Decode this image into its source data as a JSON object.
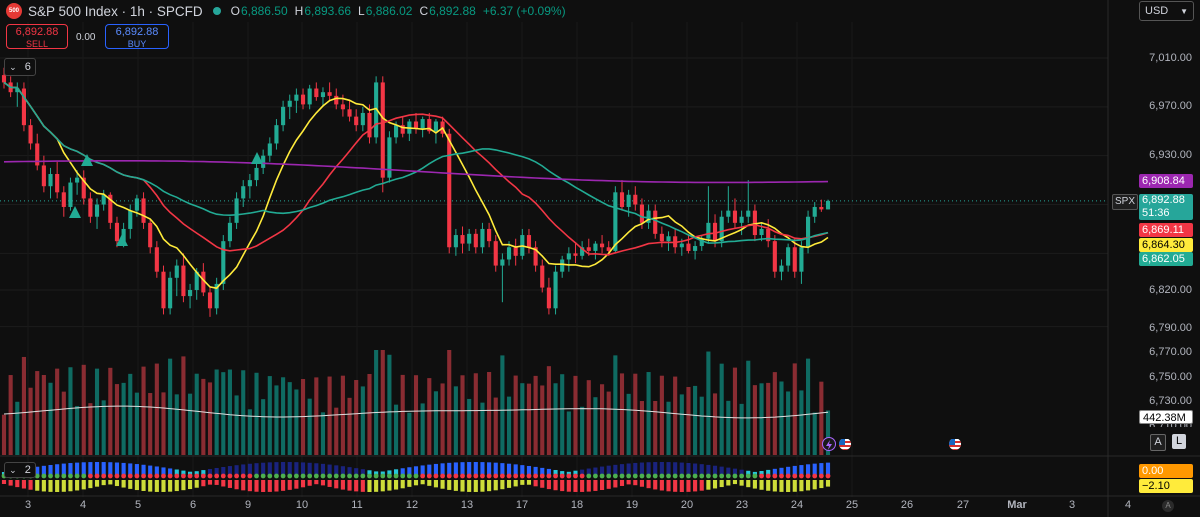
{
  "header": {
    "logo_text": "500",
    "title": "S&P 500 Index · 1h · SPCFD",
    "ohlc": [
      {
        "label": "O",
        "value": "6,886.50"
      },
      {
        "label": "H",
        "value": "6,893.66"
      },
      {
        "label": "L",
        "value": "6,886.02"
      },
      {
        "label": "C",
        "value": "6,892.88"
      }
    ],
    "change": "+6.37 (+0.09%)",
    "currency": "USD"
  },
  "trade": {
    "sell_price": "6,892.88",
    "sell_label": "SELL",
    "spread": "0.00",
    "buy_price": "6,892.88",
    "buy_label": "BUY"
  },
  "indicators": {
    "main_count": "6",
    "sub_count": "2"
  },
  "price_axis": {
    "labels": [
      "7,010.00",
      "6,970.00",
      "6,930.00",
      "6,820.00",
      "6,790.00",
      "6,770.00",
      "6,750.00",
      "6,730.00",
      "6,710.00"
    ]
  },
  "price_tags": {
    "ma_purple": {
      "value": "6,908.84",
      "color": "#9c27b0"
    },
    "spx": {
      "value": "6,892.88",
      "countdown": "51:36",
      "symbol": "SPX",
      "color": "#26a69a"
    },
    "ma_red": {
      "value": "6,869.11",
      "color": "#f23645"
    },
    "ma_yellow": {
      "value": "6,864.30",
      "color": "#ffeb3b"
    },
    "ma_green": {
      "value": "6,862.05",
      "color": "#22ab94"
    },
    "volume_ma": "442.38M",
    "osc_a": {
      "value": "0.00",
      "color": "#ff9800"
    },
    "osc_b": {
      "value": "−2.10",
      "color": "#ffeb3b"
    }
  },
  "scale_buttons": {
    "a": "A",
    "l": "L",
    "auto": "A"
  },
  "time_axis": [
    "3",
    "4",
    "5",
    "6",
    "9",
    "10",
    "11",
    "12",
    "13",
    "17",
    "18",
    "19",
    "20",
    "23",
    "24",
    "25",
    "26",
    "27",
    "Mar",
    "3",
    "4"
  ],
  "colors": {
    "up": "#22ab94",
    "down": "#f23645",
    "up_vol": "#0f6b62",
    "down_vol": "#8a2c32",
    "background": "#0f0f0f"
  },
  "chart_data": {
    "type": "candlestick",
    "ylim": [
      6770,
      7030
    ],
    "candles": [
      [
        6996,
        7002,
        6985,
        6990
      ],
      [
        6990,
        6995,
        6978,
        6982
      ],
      [
        6982,
        6990,
        6970,
        6985
      ],
      [
        6985,
        6990,
        6950,
        6955
      ],
      [
        6955,
        6960,
        6935,
        6940
      ],
      [
        6940,
        6948,
        6918,
        6922
      ],
      [
        6922,
        6930,
        6900,
        6905
      ],
      [
        6905,
        6920,
        6895,
        6915
      ],
      [
        6915,
        6925,
        6895,
        6900
      ],
      [
        6900,
        6905,
        6880,
        6888
      ],
      [
        6888,
        6912,
        6885,
        6908
      ],
      [
        6908,
        6918,
        6898,
        6912
      ],
      [
        6912,
        6918,
        6890,
        6895
      ],
      [
        6895,
        6900,
        6875,
        6880
      ],
      [
        6880,
        6895,
        6870,
        6890
      ],
      [
        6890,
        6902,
        6885,
        6898
      ],
      [
        6898,
        6900,
        6870,
        6875
      ],
      [
        6875,
        6880,
        6855,
        6860
      ],
      [
        6860,
        6875,
        6855,
        6870
      ],
      [
        6870,
        6890,
        6862,
        6885
      ],
      [
        6885,
        6898,
        6880,
        6895
      ],
      [
        6895,
        6900,
        6870,
        6875
      ],
      [
        6875,
        6878,
        6850,
        6855
      ],
      [
        6855,
        6860,
        6830,
        6835
      ],
      [
        6835,
        6840,
        6800,
        6805
      ],
      [
        6805,
        6835,
        6800,
        6830
      ],
      [
        6830,
        6845,
        6815,
        6840
      ],
      [
        6840,
        6850,
        6810,
        6815
      ],
      [
        6815,
        6825,
        6805,
        6820
      ],
      [
        6820,
        6838,
        6812,
        6835
      ],
      [
        6835,
        6842,
        6815,
        6818
      ],
      [
        6818,
        6822,
        6798,
        6805
      ],
      [
        6805,
        6830,
        6800,
        6825
      ],
      [
        6825,
        6865,
        6820,
        6860
      ],
      [
        6860,
        6880,
        6855,
        6875
      ],
      [
        6875,
        6900,
        6870,
        6895
      ],
      [
        6895,
        6910,
        6888,
        6905
      ],
      [
        6905,
        6915,
        6895,
        6910
      ],
      [
        6910,
        6925,
        6905,
        6920
      ],
      [
        6920,
        6935,
        6915,
        6930
      ],
      [
        6930,
        6945,
        6925,
        6940
      ],
      [
        6940,
        6960,
        6935,
        6955
      ],
      [
        6955,
        6975,
        6950,
        6970
      ],
      [
        6970,
        6980,
        6960,
        6975
      ],
      [
        6975,
        6985,
        6965,
        6980
      ],
      [
        6980,
        6985,
        6968,
        6972
      ],
      [
        6972,
        6988,
        6968,
        6985
      ],
      [
        6985,
        6990,
        6975,
        6978
      ],
      [
        6978,
        6986,
        6970,
        6982
      ],
      [
        6982,
        6990,
        6975,
        6979
      ],
      [
        6979,
        6985,
        6968,
        6972
      ],
      [
        6972,
        6980,
        6962,
        6968
      ],
      [
        6968,
        6975,
        6958,
        6962
      ],
      [
        6962,
        6968,
        6950,
        6955
      ],
      [
        6955,
        6970,
        6950,
        6965
      ],
      [
        6965,
        6972,
        6940,
        6945
      ],
      [
        6945,
        6995,
        6940,
        6990
      ],
      [
        6990,
        6995,
        6900,
        6912
      ],
      [
        6912,
        6950,
        6908,
        6945
      ],
      [
        6945,
        6958,
        6940,
        6955
      ],
      [
        6955,
        6962,
        6945,
        6948
      ],
      [
        6948,
        6960,
        6942,
        6958
      ],
      [
        6958,
        6965,
        6948,
        6952
      ],
      [
        6952,
        6962,
        6945,
        6960
      ],
      [
        6960,
        6965,
        6948,
        6950
      ],
      [
        6950,
        6960,
        6940,
        6958
      ],
      [
        6958,
        6962,
        6945,
        6948
      ],
      [
        6948,
        6952,
        6850,
        6855
      ],
      [
        6855,
        6870,
        6848,
        6865
      ],
      [
        6865,
        6872,
        6850,
        6858
      ],
      [
        6858,
        6870,
        6852,
        6866
      ],
      [
        6866,
        6870,
        6850,
        6855
      ],
      [
        6855,
        6875,
        6850,
        6870
      ],
      [
        6870,
        6875,
        6855,
        6860
      ],
      [
        6860,
        6865,
        6835,
        6840
      ],
      [
        6840,
        6850,
        6810,
        6845
      ],
      [
        6845,
        6860,
        6840,
        6855
      ],
      [
        6855,
        6862,
        6840,
        6848
      ],
      [
        6848,
        6870,
        6845,
        6865
      ],
      [
        6865,
        6870,
        6850,
        6855
      ],
      [
        6855,
        6860,
        6835,
        6840
      ],
      [
        6840,
        6845,
        6818,
        6822
      ],
      [
        6822,
        6830,
        6800,
        6805
      ],
      [
        6805,
        6840,
        6800,
        6835
      ],
      [
        6835,
        6848,
        6830,
        6845
      ],
      [
        6845,
        6855,
        6835,
        6850
      ],
      [
        6850,
        6858,
        6842,
        6848
      ],
      [
        6848,
        6860,
        6845,
        6855
      ],
      [
        6855,
        6862,
        6848,
        6852
      ],
      [
        6852,
        6860,
        6845,
        6858
      ],
      [
        6858,
        6865,
        6850,
        6855
      ],
      [
        6855,
        6860,
        6848,
        6852
      ],
      [
        6852,
        6905,
        6850,
        6900
      ],
      [
        6900,
        6910,
        6885,
        6888
      ],
      [
        6888,
        6902,
        6880,
        6898
      ],
      [
        6898,
        6905,
        6885,
        6890
      ],
      [
        6890,
        6895,
        6870,
        6875
      ],
      [
        6875,
        6890,
        6870,
        6885
      ],
      [
        6885,
        6890,
        6862,
        6866
      ],
      [
        6866,
        6872,
        6855,
        6860
      ],
      [
        6860,
        6868,
        6852,
        6864
      ],
      [
        6864,
        6870,
        6850,
        6855
      ],
      [
        6855,
        6862,
        6848,
        6858
      ],
      [
        6858,
        6865,
        6850,
        6852
      ],
      [
        6852,
        6860,
        6845,
        6856
      ],
      [
        6856,
        6865,
        6852,
        6862
      ],
      [
        6862,
        6905,
        6858,
        6875
      ],
      [
        6875,
        6882,
        6855,
        6860
      ],
      [
        6860,
        6885,
        6855,
        6880
      ],
      [
        6880,
        6905,
        6875,
        6885
      ],
      [
        6885,
        6895,
        6870,
        6875
      ],
      [
        6875,
        6885,
        6865,
        6880
      ],
      [
        6880,
        6910,
        6875,
        6885
      ],
      [
        6885,
        6890,
        6860,
        6865
      ],
      [
        6865,
        6875,
        6860,
        6870
      ],
      [
        6870,
        6878,
        6855,
        6860
      ],
      [
        6860,
        6865,
        6830,
        6835
      ],
      [
        6835,
        6845,
        6828,
        6840
      ],
      [
        6840,
        6858,
        6835,
        6855
      ],
      [
        6855,
        6862,
        6830,
        6835
      ],
      [
        6835,
        6860,
        6825,
        6855
      ],
      [
        6855,
        6885,
        6850,
        6880
      ],
      [
        6880,
        6892,
        6875,
        6888
      ],
      [
        6888,
        6894,
        6884,
        6886
      ],
      [
        6886,
        6894,
        6886,
        6893
      ]
    ],
    "ma_series": [
      {
        "name": "MA purple",
        "color": "#9c27b0",
        "start": 6925,
        "end": 6908.84
      },
      {
        "name": "MA green",
        "color": "#22ab94",
        "start": 6960,
        "end": 6862.05
      },
      {
        "name": "MA red",
        "color": "#f23645",
        "start": 6950,
        "end": 6869.11
      },
      {
        "name": "MA yellow",
        "color": "#ffeb3b",
        "start": 6970,
        "end": 6864.3
      }
    ],
    "volume_ma_last": "442.38M"
  }
}
